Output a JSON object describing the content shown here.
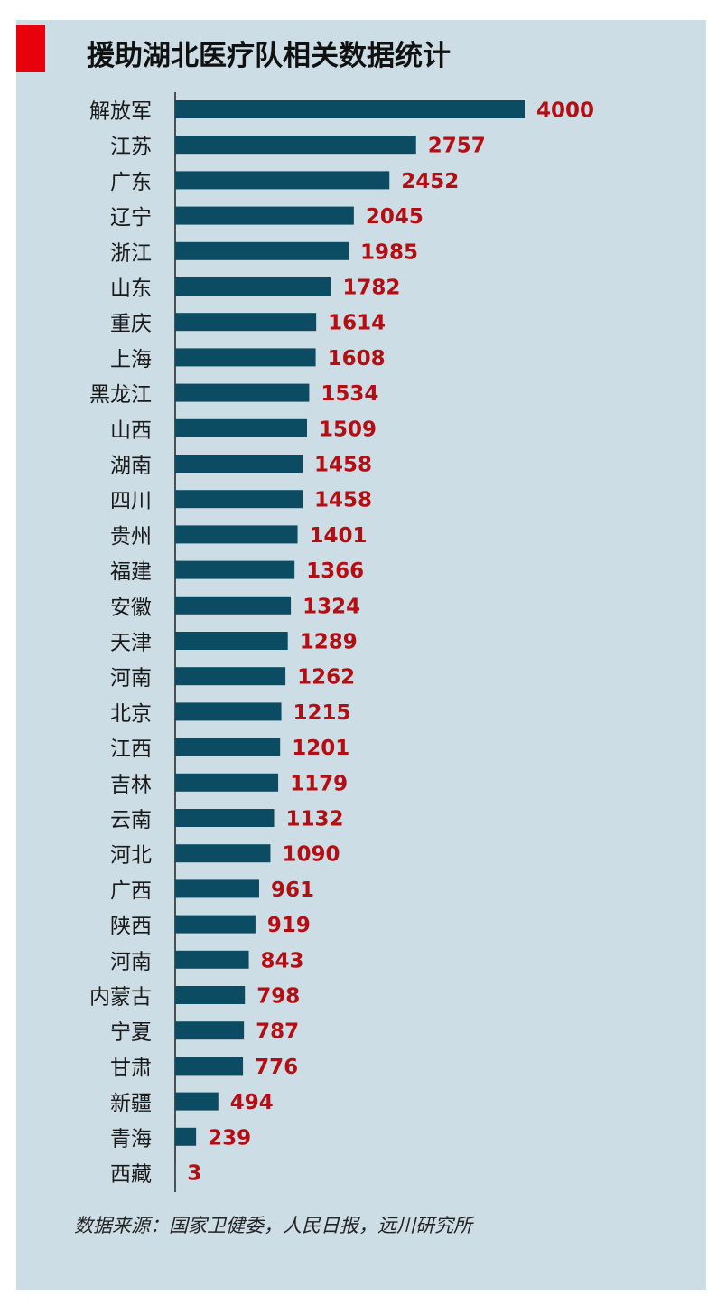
{
  "header": {
    "title": "援助湖北医疗队相关数据统计"
  },
  "colors": {
    "panel": "#ccdde5",
    "accent": "#e8000d",
    "bar": "#0c4c62",
    "value_label": "#b40d12",
    "axis": "#222222"
  },
  "chart_data": {
    "type": "bar",
    "orientation": "horizontal",
    "title": "援助湖北医疗队相关数据统计",
    "categories": [
      "解放军",
      "江苏",
      "广东",
      "辽宁",
      "浙江",
      "山东",
      "重庆",
      "上海",
      "黑龙江",
      "山西",
      "湖南",
      "四川",
      "贵州",
      "福建",
      "安徽",
      "天津",
      "河南",
      "北京",
      "江西",
      "吉林",
      "云南",
      "河北",
      "广西",
      "陕西",
      "河南",
      "内蒙古",
      "宁夏",
      "甘肃",
      "新疆",
      "青海",
      "西藏"
    ],
    "values": [
      4000,
      2757,
      2452,
      2045,
      1985,
      1782,
      1614,
      1608,
      1534,
      1509,
      1458,
      1458,
      1401,
      1366,
      1324,
      1289,
      1262,
      1215,
      1201,
      1179,
      1132,
      1090,
      961,
      919,
      843,
      798,
      787,
      776,
      494,
      239,
      3
    ],
    "xlim": [
      0,
      4000
    ],
    "grid": false,
    "legend": "none",
    "data_labels": true
  },
  "footer": {
    "source": "数据来源：国家卫健委，人民日报，远川研究所"
  }
}
